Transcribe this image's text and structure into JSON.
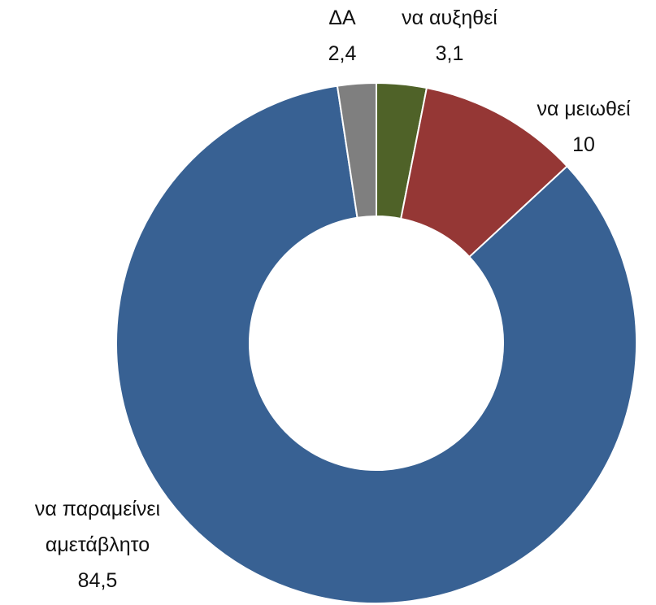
{
  "chart_data": {
    "type": "donut",
    "categories": [
      "να αυξηθεί",
      "να μειωθεί",
      "να παραμείνει αμετάβλητο",
      "ΔΑ"
    ],
    "values": [
      3.1,
      10,
      84.5,
      2.4
    ],
    "value_labels": [
      "3,1",
      "10",
      "84,5",
      "2,4"
    ],
    "colors": [
      "#4f6228",
      "#953735",
      "#386193",
      "#7f7f7f"
    ]
  }
}
